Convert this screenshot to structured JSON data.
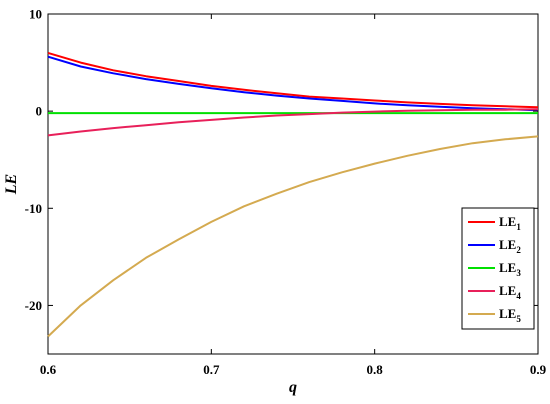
{
  "chart_data": {
    "type": "line",
    "xlabel": "q",
    "ylabel": "LE",
    "xlim": [
      0.6,
      0.9
    ],
    "ylim": [
      -25,
      10
    ],
    "xticks": [
      0.6,
      0.7,
      0.8,
      0.9
    ],
    "xtick_labels": [
      "0.6",
      "0.7",
      "0.8",
      "0.9"
    ],
    "yticks": [
      10,
      0,
      -10,
      -20
    ],
    "ytick_labels": [
      "10",
      "0",
      "-10",
      "-20"
    ],
    "grid": false,
    "legend_position": "bottom-right",
    "series": [
      {
        "name": "LE",
        "sub": "1",
        "color": "#ff0000",
        "x": [
          0.6,
          0.62,
          0.64,
          0.66,
          0.68,
          0.7,
          0.72,
          0.74,
          0.76,
          0.78,
          0.8,
          0.82,
          0.84,
          0.86,
          0.88,
          0.9
        ],
        "y": [
          6.0,
          5.0,
          4.2,
          3.6,
          3.1,
          2.6,
          2.2,
          1.85,
          1.5,
          1.3,
          1.1,
          0.9,
          0.75,
          0.6,
          0.5,
          0.4
        ]
      },
      {
        "name": "LE",
        "sub": "2",
        "color": "#0000ff",
        "x": [
          0.6,
          0.62,
          0.64,
          0.66,
          0.68,
          0.7,
          0.72,
          0.74,
          0.76,
          0.78,
          0.8,
          0.82,
          0.84,
          0.86,
          0.88,
          0.9
        ],
        "y": [
          5.6,
          4.6,
          3.9,
          3.3,
          2.8,
          2.35,
          1.95,
          1.6,
          1.3,
          1.05,
          0.8,
          0.6,
          0.45,
          0.3,
          0.2,
          0.1
        ]
      },
      {
        "name": "LE",
        "sub": "3",
        "color": "#00e000",
        "x": [
          0.6,
          0.7,
          0.8,
          0.9
        ],
        "y": [
          -0.2,
          -0.2,
          -0.2,
          -0.2
        ]
      },
      {
        "name": "LE",
        "sub": "4",
        "color": "#e8205a",
        "x": [
          0.6,
          0.62,
          0.64,
          0.66,
          0.68,
          0.7,
          0.72,
          0.74,
          0.76,
          0.78,
          0.8,
          0.82,
          0.84,
          0.86,
          0.88,
          0.9
        ],
        "y": [
          -2.5,
          -2.1,
          -1.75,
          -1.45,
          -1.15,
          -0.9,
          -0.65,
          -0.45,
          -0.3,
          -0.15,
          -0.05,
          0.05,
          0.1,
          0.15,
          0.15,
          0.2
        ]
      },
      {
        "name": "LE",
        "sub": "5",
        "color": "#d4aa50",
        "x": [
          0.6,
          0.62,
          0.64,
          0.66,
          0.68,
          0.7,
          0.72,
          0.74,
          0.76,
          0.78,
          0.8,
          0.82,
          0.84,
          0.86,
          0.88,
          0.9
        ],
        "y": [
          -23.2,
          -20.0,
          -17.4,
          -15.1,
          -13.2,
          -11.4,
          -9.8,
          -8.5,
          -7.3,
          -6.3,
          -5.4,
          -4.6,
          -3.9,
          -3.3,
          -2.9,
          -2.6
        ]
      }
    ]
  }
}
